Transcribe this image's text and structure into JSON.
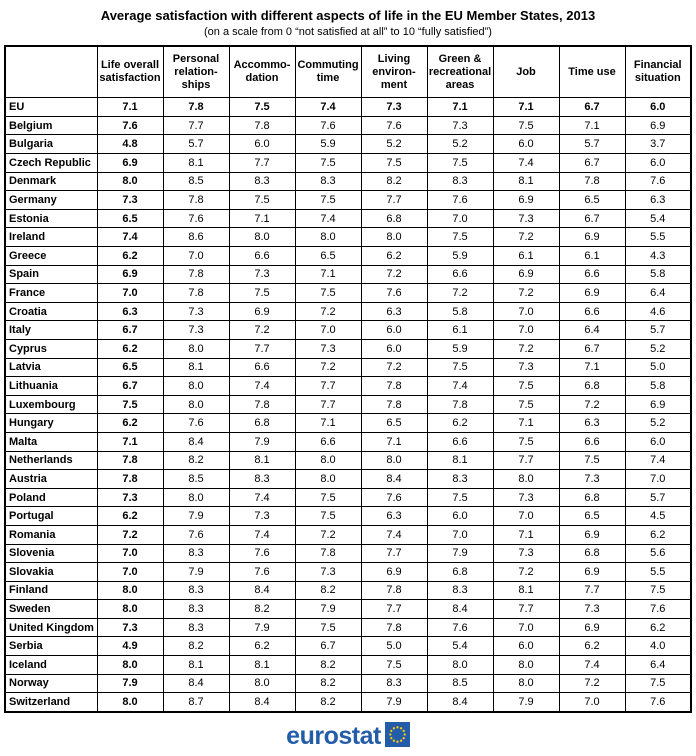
{
  "title": "Average satisfaction with different aspects of life in the EU Member States, 2013",
  "subtitle": "(on a scale from 0 “not satisfied at all” to 10 “fully satisfied”)",
  "footer": {
    "logo_text": "eurostat"
  },
  "colors": {
    "logo_blue": "#235CA8",
    "star_yellow": "#FFCC00"
  },
  "chart_data": {
    "type": "table",
    "title": "Average satisfaction with different aspects of life in the EU Member States, 2013",
    "scale_note": "(on a scale from 0 “not satisfied at all” to 10 “fully satisfied”)",
    "columns": [
      "Life overall\nsatisfaction",
      "Personal\nrelation-\nships",
      "Accommo-\ndation",
      "Commuting\ntime",
      "Living\nenviron-\nment",
      "Green &\nrecreational\nareas",
      "Job",
      "Time use",
      "Financial\nsituation"
    ],
    "rows": [
      {
        "country": "EU",
        "eu": true,
        "values": [
          "7.1",
          "7.8",
          "7.5",
          "7.4",
          "7.3",
          "7.1",
          "7.1",
          "6.7",
          "6.0"
        ]
      },
      {
        "country": "Belgium",
        "eu": false,
        "values": [
          "7.6",
          "7.7",
          "7.8",
          "7.6",
          "7.6",
          "7.3",
          "7.5",
          "7.1",
          "6.9"
        ]
      },
      {
        "country": "Bulgaria",
        "eu": false,
        "values": [
          "4.8",
          "5.7",
          "6.0",
          "5.9",
          "5.2",
          "5.2",
          "6.0",
          "5.7",
          "3.7"
        ]
      },
      {
        "country": "Czech Republic",
        "eu": false,
        "values": [
          "6.9",
          "8.1",
          "7.7",
          "7.5",
          "7.5",
          "7.5",
          "7.4",
          "6.7",
          "6.0"
        ]
      },
      {
        "country": "Denmark",
        "eu": false,
        "values": [
          "8.0",
          "8.5",
          "8.3",
          "8.3",
          "8.2",
          "8.3",
          "8.1",
          "7.8",
          "7.6"
        ]
      },
      {
        "country": "Germany",
        "eu": false,
        "values": [
          "7.3",
          "7.8",
          "7.5",
          "7.5",
          "7.7",
          "7.6",
          "6.9",
          "6.5",
          "6.3"
        ]
      },
      {
        "country": "Estonia",
        "eu": false,
        "values": [
          "6.5",
          "7.6",
          "7.1",
          "7.4",
          "6.8",
          "7.0",
          "7.3",
          "6.7",
          "5.4"
        ]
      },
      {
        "country": "Ireland",
        "eu": false,
        "values": [
          "7.4",
          "8.6",
          "8.0",
          "8.0",
          "8.0",
          "7.5",
          "7.2",
          "6.9",
          "5.5"
        ]
      },
      {
        "country": "Greece",
        "eu": false,
        "values": [
          "6.2",
          "7.0",
          "6.6",
          "6.5",
          "6.2",
          "5.9",
          "6.1",
          "6.1",
          "4.3"
        ]
      },
      {
        "country": "Spain",
        "eu": false,
        "values": [
          "6.9",
          "7.8",
          "7.3",
          "7.1",
          "7.2",
          "6.6",
          "6.9",
          "6.6",
          "5.8"
        ]
      },
      {
        "country": "France",
        "eu": false,
        "values": [
          "7.0",
          "7.8",
          "7.5",
          "7.5",
          "7.6",
          "7.2",
          "7.2",
          "6.9",
          "6.4"
        ]
      },
      {
        "country": "Croatia",
        "eu": false,
        "values": [
          "6.3",
          "7.3",
          "6.9",
          "7.2",
          "6.3",
          "5.8",
          "7.0",
          "6.6",
          "4.6"
        ]
      },
      {
        "country": "Italy",
        "eu": false,
        "values": [
          "6.7",
          "7.3",
          "7.2",
          "7.0",
          "6.0",
          "6.1",
          "7.0",
          "6.4",
          "5.7"
        ]
      },
      {
        "country": "Cyprus",
        "eu": false,
        "values": [
          "6.2",
          "8.0",
          "7.7",
          "7.3",
          "6.0",
          "5.9",
          "7.2",
          "6.7",
          "5.2"
        ]
      },
      {
        "country": "Latvia",
        "eu": false,
        "values": [
          "6.5",
          "8.1",
          "6.6",
          "7.2",
          "7.2",
          "7.5",
          "7.3",
          "7.1",
          "5.0"
        ]
      },
      {
        "country": "Lithuania",
        "eu": false,
        "values": [
          "6.7",
          "8.0",
          "7.4",
          "7.7",
          "7.8",
          "7.4",
          "7.5",
          "6.8",
          "5.8"
        ]
      },
      {
        "country": "Luxembourg",
        "eu": false,
        "values": [
          "7.5",
          "8.0",
          "7.8",
          "7.7",
          "7.8",
          "7.8",
          "7.5",
          "7.2",
          "6.9"
        ]
      },
      {
        "country": "Hungary",
        "eu": false,
        "values": [
          "6.2",
          "7.6",
          "6.8",
          "7.1",
          "6.5",
          "6.2",
          "7.1",
          "6.3",
          "5.2"
        ]
      },
      {
        "country": "Malta",
        "eu": false,
        "values": [
          "7.1",
          "8.4",
          "7.9",
          "6.6",
          "7.1",
          "6.6",
          "7.5",
          "6.6",
          "6.0"
        ]
      },
      {
        "country": "Netherlands",
        "eu": false,
        "values": [
          "7.8",
          "8.2",
          "8.1",
          "8.0",
          "8.0",
          "8.1",
          "7.7",
          "7.5",
          "7.4"
        ]
      },
      {
        "country": "Austria",
        "eu": false,
        "values": [
          "7.8",
          "8.5",
          "8.3",
          "8.0",
          "8.4",
          "8.3",
          "8.0",
          "7.3",
          "7.0"
        ]
      },
      {
        "country": "Poland",
        "eu": false,
        "values": [
          "7.3",
          "8.0",
          "7.4",
          "7.5",
          "7.6",
          "7.5",
          "7.3",
          "6.8",
          "5.7"
        ]
      },
      {
        "country": "Portugal",
        "eu": false,
        "values": [
          "6.2",
          "7.9",
          "7.3",
          "7.5",
          "6.3",
          "6.0",
          "7.0",
          "6.5",
          "4.5"
        ]
      },
      {
        "country": "Romania",
        "eu": false,
        "values": [
          "7.2",
          "7.6",
          "7.4",
          "7.2",
          "7.4",
          "7.0",
          "7.1",
          "6.9",
          "6.2"
        ]
      },
      {
        "country": "Slovenia",
        "eu": false,
        "values": [
          "7.0",
          "8.3",
          "7.6",
          "7.8",
          "7.7",
          "7.9",
          "7.3",
          "6.8",
          "5.6"
        ]
      },
      {
        "country": "Slovakia",
        "eu": false,
        "values": [
          "7.0",
          "7.9",
          "7.6",
          "7.3",
          "6.9",
          "6.8",
          "7.2",
          "6.9",
          "5.5"
        ]
      },
      {
        "country": "Finland",
        "eu": false,
        "values": [
          "8.0",
          "8.3",
          "8.4",
          "8.2",
          "7.8",
          "8.3",
          "8.1",
          "7.7",
          "7.5"
        ]
      },
      {
        "country": "Sweden",
        "eu": false,
        "values": [
          "8.0",
          "8.3",
          "8.2",
          "7.9",
          "7.7",
          "8.4",
          "7.7",
          "7.3",
          "7.6"
        ]
      },
      {
        "country": "United Kingdom",
        "eu": false,
        "values": [
          "7.3",
          "8.3",
          "7.9",
          "7.5",
          "7.8",
          "7.6",
          "7.0",
          "6.9",
          "6.2"
        ]
      },
      {
        "country": "Serbia",
        "eu": false,
        "values": [
          "4.9",
          "8.2",
          "6.2",
          "6.7",
          "5.0",
          "5.4",
          "6.0",
          "6.2",
          "4.0"
        ]
      },
      {
        "country": "Iceland",
        "eu": false,
        "values": [
          "8.0",
          "8.1",
          "8.1",
          "8.2",
          "7.5",
          "8.0",
          "8.0",
          "7.4",
          "6.4"
        ]
      },
      {
        "country": "Norway",
        "eu": false,
        "values": [
          "7.9",
          "8.4",
          "8.0",
          "8.2",
          "8.3",
          "8.5",
          "8.0",
          "7.2",
          "7.5"
        ]
      },
      {
        "country": "Switzerland",
        "eu": false,
        "values": [
          "8.0",
          "8.7",
          "8.4",
          "8.2",
          "7.9",
          "8.4",
          "7.9",
          "7.0",
          "7.6"
        ]
      }
    ]
  }
}
